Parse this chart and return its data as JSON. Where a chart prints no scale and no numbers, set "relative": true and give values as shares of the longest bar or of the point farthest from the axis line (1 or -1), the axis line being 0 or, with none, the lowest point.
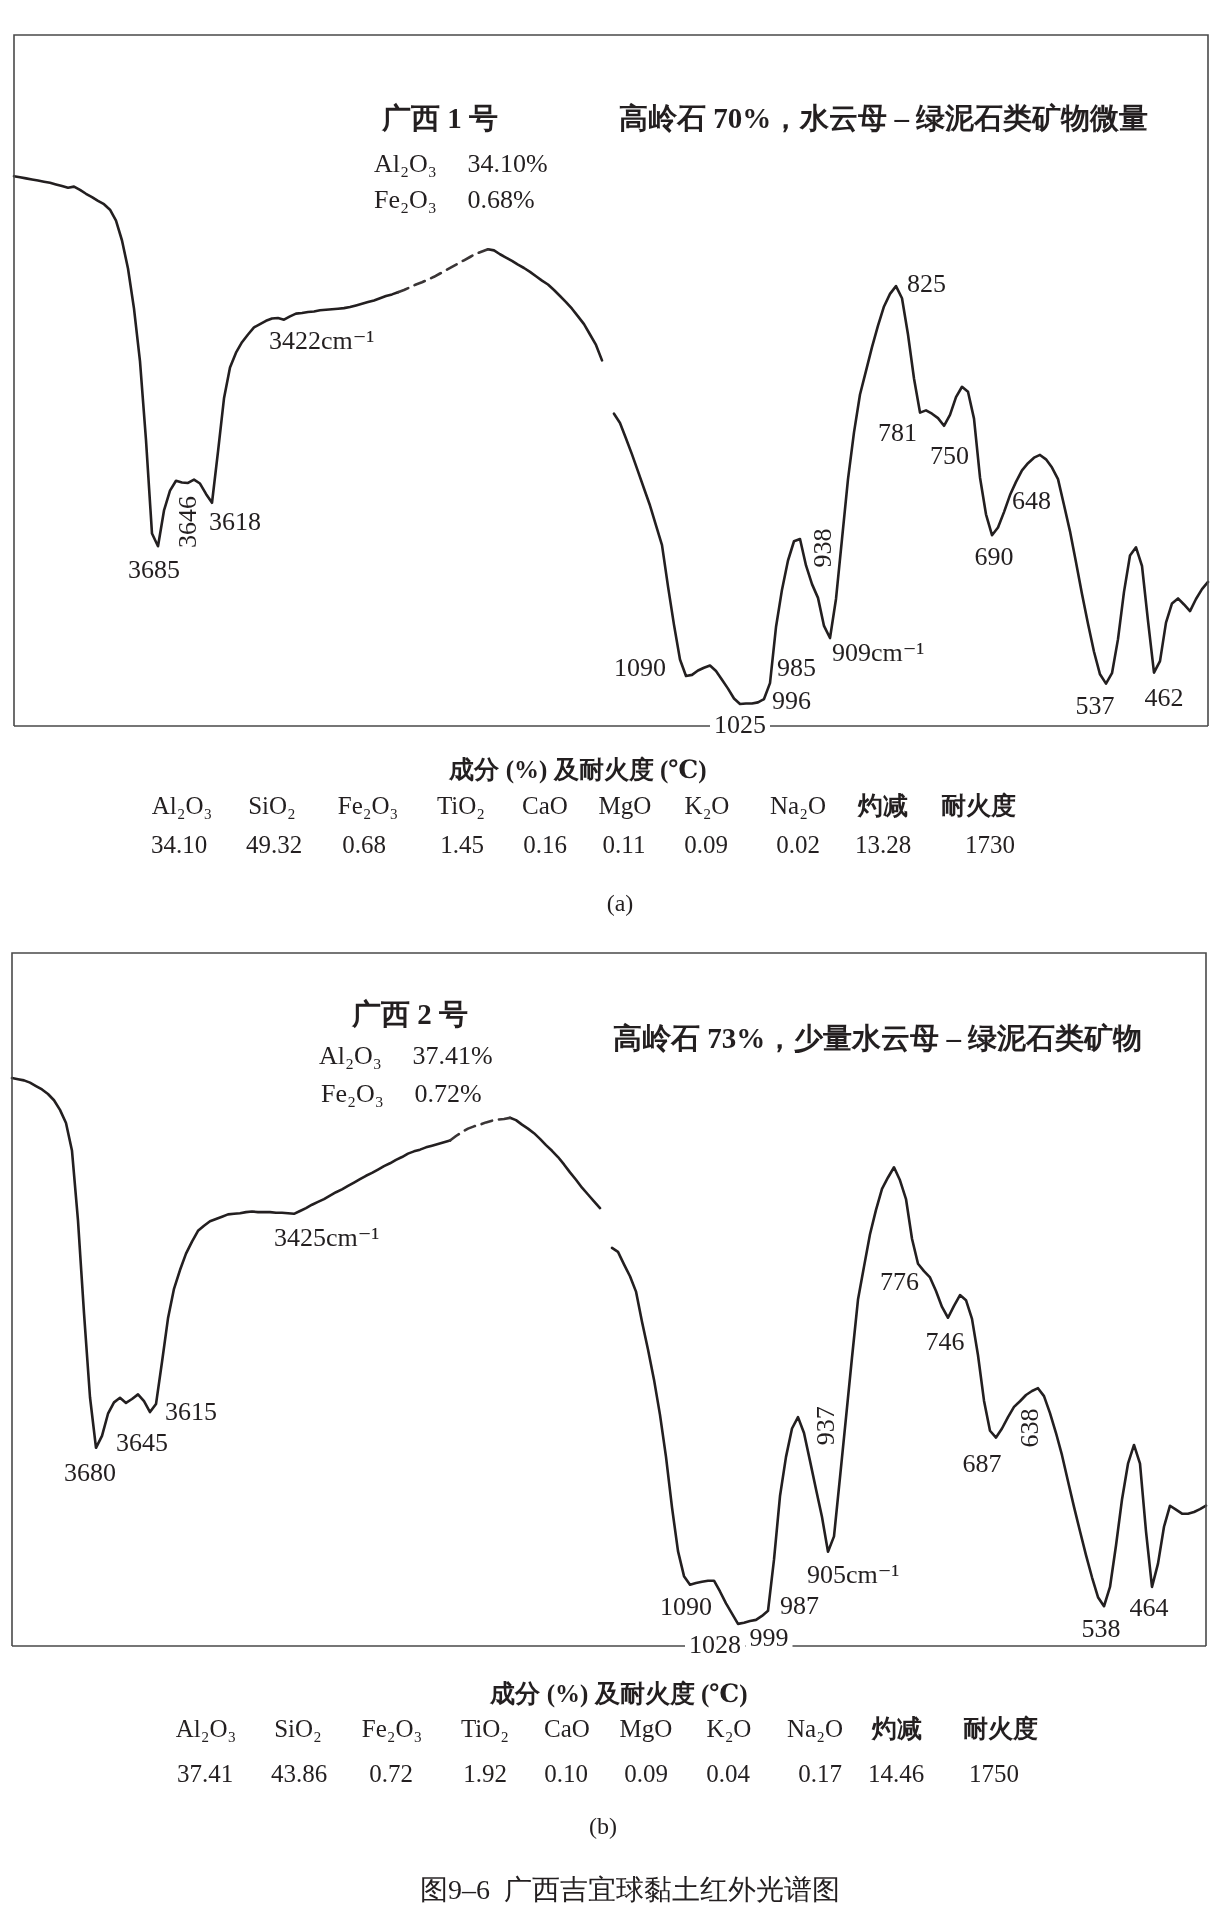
{
  "chart_data": [
    {
      "type": "line",
      "relative": true,
      "title": "广西 1 号",
      "subtitle": "高岭石 70%，水云母 – 绿泥石类矿物微量",
      "categories": [
        null,
        null,
        null,
        null,
        null,
        null,
        null,
        null,
        null,
        null,
        null,
        null,
        null,
        null,
        null,
        null,
        null,
        null,
        null,
        null,
        null,
        null,
        null,
        null,
        null,
        null,
        null,
        null,
        null,
        null,
        null,
        null,
        null,
        null,
        null,
        null,
        null,
        null,
        null,
        null,
        null,
        null,
        null,
        null,
        null,
        null,
        null,
        null,
        null,
        null,
        null,
        null,
        null,
        null,
        null,
        null,
        null,
        null,
        null,
        null,
        null,
        null,
        null,
        null,
        null,
        null,
        null,
        null,
        null,
        null,
        null,
        null,
        null,
        null,
        null,
        null,
        null,
        null,
        null,
        null,
        null,
        null,
        null,
        null,
        null,
        null,
        null,
        null,
        null,
        null,
        null,
        null,
        null,
        null,
        null,
        null,
        null,
        null,
        null,
        null,
        null,
        null,
        null,
        null,
        null,
        null,
        null,
        null,
        null,
        null,
        null,
        null,
        null,
        null,
        null,
        null,
        null,
        null,
        null,
        null,
        null,
        null,
        null,
        null,
        null,
        null,
        null,
        null,
        null,
        null,
        null,
        null,
        null,
        null,
        null,
        null,
        null,
        null,
        null,
        null,
        null,
        null,
        null,
        null,
        null,
        null,
        null,
        null,
        null,
        null,
        null,
        null,
        null,
        null,
        null,
        null,
        null,
        null,
        null,
        null,
        null,
        null,
        null,
        null,
        null,
        null,
        null,
        null,
        null,
        null,
        null,
        null,
        null,
        null,
        null,
        null,
        null,
        null,
        null,
        null,
        null,
        null,
        null,
        null,
        null,
        null,
        null,
        null,
        null,
        null,
        null,
        null,
        null,
        null,
        null,
        null,
        null,
        null,
        null,
        null
      ],
      "series": [
        {
          "color": "#231f20",
          "values": [
            1.0,
            0.998,
            0.996,
            0.994,
            0.992,
            0.99,
            0.988,
            0.985,
            0.982,
            0.979,
            0.981,
            0.975,
            0.968,
            0.962,
            0.955,
            0.949,
            0.939,
            0.919,
            0.883,
            0.832,
            0.759,
            0.663,
            0.52,
            0.35,
            0.327,
            0.392,
            0.428,
            0.446,
            0.443,
            0.442,
            0.448,
            0.441,
            0.422,
            0.406,
            0.499,
            0.596,
            0.652,
            0.679,
            0.698,
            0.712,
            0.725,
            0.731,
            0.737,
            0.741,
            0.742,
            0.739,
            0.745,
            0.75,
            0.751,
            0.753,
            0.754,
            0.756,
            0.757,
            0.758,
            0.759,
            0.76,
            0.762,
            0.765,
            0.768,
            0.771,
            0.774,
            0.778,
            0.782,
            0.785,
            0.789,
            null,
            null,
            null,
            null,
            null,
            null,
            null,
            null,
            null,
            null,
            null,
            null,
            null,
            null,
            0.867,
            0.865,
            0.858,
            0.852,
            0.846,
            0.839,
            0.833,
            0.826,
            0.818,
            0.81,
            0.803,
            0.793,
            0.782,
            0.771,
            0.759,
            0.745,
            0.731,
            0.712,
            0.693,
            0.665,
            null,
            0.568,
            0.551,
            0.523,
            0.494,
            0.463,
            0.432,
            0.401,
            0.365,
            0.329,
            0.254,
            0.184,
            0.121,
            0.091,
            0.093,
            0.101,
            0.106,
            0.11,
            0.1,
            0.084,
            0.068,
            0.05,
            0.04,
            0.041,
            0.041,
            0.043,
            0.049,
            0.078,
            0.18,
            0.248,
            0.301,
            0.336,
            0.34,
            0.292,
            0.258,
            0.233,
            0.182,
            0.16,
            0.231,
            0.34,
            0.449,
            0.534,
            0.603,
            0.646,
            0.689,
            0.728,
            0.763,
            0.786,
            0.8,
            0.778,
            0.712,
            0.632,
            0.57,
            0.574,
            0.568,
            0.56,
            0.546,
            0.566,
            0.598,
            0.617,
            0.608,
            0.559,
            0.452,
            0.385,
            0.347,
            0.361,
            0.389,
            0.42,
            0.444,
            0.465,
            0.478,
            0.488,
            0.493,
            0.485,
            0.47,
            0.449,
            0.402,
            0.354,
            0.298,
            0.24,
            0.186,
            0.135,
            0.094,
            0.077,
            0.096,
            0.158,
            0.244,
            0.31,
            0.325,
            0.291,
            0.191,
            0.097,
            0.118,
            0.188,
            0.223,
            0.232,
            0.221,
            0.209,
            0.231,
            0.249,
            0.262
          ]
        },
        {
          "color": "#3a3536",
          "line_style": "dashed",
          "values": [
            null,
            null,
            null,
            null,
            null,
            null,
            null,
            null,
            null,
            null,
            null,
            null,
            null,
            null,
            null,
            null,
            null,
            null,
            null,
            null,
            null,
            null,
            null,
            null,
            null,
            null,
            null,
            null,
            null,
            null,
            null,
            null,
            null,
            null,
            null,
            null,
            null,
            null,
            null,
            null,
            null,
            null,
            null,
            null,
            null,
            null,
            null,
            null,
            null,
            null,
            null,
            null,
            null,
            null,
            null,
            null,
            null,
            null,
            null,
            null,
            null,
            null,
            null,
            null,
            0.789,
            0.793,
            0.798,
            0.803,
            0.807,
            0.812,
            0.817,
            0.823,
            0.829,
            0.835,
            0.841,
            0.847,
            0.853,
            0.859,
            0.863,
            0.867,
            null,
            null,
            null,
            null,
            null,
            null,
            null,
            null,
            null,
            null,
            null,
            null,
            null,
            null,
            null,
            null,
            null,
            null,
            null,
            null,
            null,
            null,
            null,
            null,
            null,
            null,
            null,
            null,
            null,
            null,
            null,
            null,
            null,
            null,
            null,
            null,
            null,
            null,
            null,
            null,
            null,
            null,
            null,
            null,
            null,
            null,
            null,
            null,
            null,
            null,
            null,
            null,
            null,
            null,
            null,
            null,
            null,
            null,
            null,
            null,
            null,
            null,
            null,
            null,
            null,
            null,
            null,
            null,
            null,
            null,
            null,
            null,
            null,
            null,
            null,
            null,
            null,
            null,
            null,
            null,
            null,
            null,
            null,
            null,
            null,
            null,
            null,
            null,
            null,
            null,
            null,
            null,
            null,
            null,
            null,
            null,
            null,
            null,
            null,
            null,
            null,
            null,
            null,
            null,
            null,
            null,
            null,
            null,
            null,
            null,
            null,
            null,
            null,
            null,
            null,
            null,
            null,
            null,
            null,
            null
          ]
        }
      ],
      "annotations": [
        "3685",
        "3646",
        "3618",
        "3422cm⁻¹",
        "1090",
        "1025",
        "996",
        "985",
        "938",
        "909cm⁻¹",
        "825",
        "781",
        "750",
        "690",
        "648",
        "537",
        "462",
        "Al₂O₃ 34.10%",
        "Fe₂O₃ 0.68%",
        "成分 (%) 及耐火度 (℃)",
        "Al₂O₃",
        "SiO₂",
        "Fe₂O₃",
        "TiO₂",
        "CaO",
        "MgO",
        "K₂O",
        "Na₂O",
        "灼减",
        "耐火度",
        "34.10",
        "49.32",
        "0.68",
        "1.45",
        "0.16",
        "0.11",
        "0.09",
        "0.02",
        "13.28",
        "1730",
        "(a)"
      ]
    },
    {
      "type": "line",
      "relative": true,
      "title": "广西 2 号",
      "subtitle": "高岭石 73%，少量水云母 – 绿泥石类矿物",
      "categories": [
        null,
        null,
        null,
        null,
        null,
        null,
        null,
        null,
        null,
        null,
        null,
        null,
        null,
        null,
        null,
        null,
        null,
        null,
        null,
        null,
        null,
        null,
        null,
        null,
        null,
        null,
        null,
        null,
        null,
        null,
        null,
        null,
        null,
        null,
        null,
        null,
        null,
        null,
        null,
        null,
        null,
        null,
        null,
        null,
        null,
        null,
        null,
        null,
        null,
        null,
        null,
        null,
        null,
        null,
        null,
        null,
        null,
        null,
        null,
        null,
        null,
        null,
        null,
        null,
        null,
        null,
        null,
        null,
        null,
        null,
        null,
        null,
        null,
        null,
        null,
        null,
        null,
        null,
        null,
        null,
        null,
        null,
        null,
        null,
        null,
        null,
        null,
        null,
        null,
        null,
        null,
        null,
        null,
        null,
        null,
        null,
        null,
        null,
        null,
        null,
        null,
        null,
        null,
        null,
        null,
        null,
        null,
        null,
        null,
        null,
        null,
        null,
        null,
        null,
        null,
        null,
        null,
        null,
        null,
        null,
        null,
        null,
        null,
        null,
        null,
        null,
        null,
        null,
        null,
        null,
        null,
        null,
        null,
        null,
        null,
        null,
        null,
        null,
        null,
        null,
        null,
        null,
        null,
        null,
        null,
        null,
        null,
        null,
        null,
        null,
        null,
        null,
        null,
        null,
        null,
        null,
        null,
        null,
        null,
        null,
        null,
        null,
        null,
        null,
        null,
        null,
        null,
        null,
        null,
        null,
        null,
        null,
        null,
        null,
        null,
        null,
        null,
        null,
        null,
        null,
        null,
        null,
        null,
        null,
        null,
        null,
        null,
        null,
        null,
        null,
        null,
        null,
        null,
        null,
        null,
        null,
        null,
        null,
        null,
        null
      ],
      "series": [
        {
          "color": "#231f20",
          "values": [
            1.0,
            0.998,
            0.996,
            0.992,
            0.986,
            0.98,
            0.972,
            0.961,
            0.944,
            0.921,
            0.872,
            0.749,
            0.586,
            0.438,
            0.349,
            0.37,
            0.409,
            0.429,
            0.437,
            0.428,
            0.435,
            0.443,
            0.431,
            0.412,
            0.426,
            0.5,
            0.577,
            0.629,
            0.662,
            0.691,
            0.712,
            0.731,
            0.74,
            0.748,
            0.752,
            0.756,
            0.76,
            0.761,
            0.762,
            0.764,
            0.765,
            0.764,
            0.764,
            0.764,
            0.763,
            0.763,
            0.762,
            0.761,
            0.766,
            0.771,
            0.777,
            0.782,
            0.787,
            0.793,
            0.799,
            0.804,
            0.81,
            0.816,
            0.822,
            0.828,
            0.833,
            0.839,
            0.845,
            0.85,
            0.856,
            0.861,
            0.867,
            0.871,
            0.874,
            0.878,
            0.881,
            0.884,
            0.887,
            0.89,
            null,
            null,
            null,
            null,
            null,
            null,
            null,
            null,
            null,
            0.93,
            0.926,
            0.918,
            0.911,
            0.903,
            0.893,
            0.882,
            0.872,
            0.861,
            0.848,
            0.834,
            0.821,
            0.807,
            0.795,
            0.783,
            0.771,
            null,
            0.701,
            0.694,
            0.672,
            0.651,
            0.624,
            0.571,
            0.522,
            0.469,
            0.407,
            0.333,
            0.244,
            0.167,
            0.123,
            0.108,
            0.111,
            0.113,
            0.115,
            0.115,
            0.096,
            0.075,
            0.057,
            0.039,
            0.041,
            0.044,
            0.046,
            0.053,
            0.062,
            0.152,
            0.264,
            0.333,
            0.383,
            0.403,
            0.375,
            0.326,
            0.276,
            0.227,
            0.166,
            0.193,
            0.297,
            0.402,
            0.508,
            0.61,
            0.668,
            0.725,
            0.768,
            0.805,
            0.825,
            0.843,
            0.82,
            0.787,
            0.717,
            0.673,
            0.66,
            0.649,
            0.625,
            0.597,
            0.578,
            0.599,
            0.618,
            0.609,
            0.576,
            0.512,
            0.432,
            0.379,
            0.367,
            0.383,
            0.403,
            0.421,
            0.431,
            0.442,
            0.449,
            0.454,
            0.44,
            0.41,
            0.375,
            0.336,
            0.29,
            0.245,
            0.202,
            0.16,
            0.121,
            0.086,
            0.07,
            0.104,
            0.177,
            0.258,
            0.321,
            0.354,
            0.321,
            0.202,
            0.104,
            0.145,
            0.21,
            0.247,
            0.24,
            0.233,
            0.233,
            0.236,
            0.241,
            0.247
          ]
        },
        {
          "color": "#3a3536",
          "line_style": "dashed",
          "values": [
            null,
            null,
            null,
            null,
            null,
            null,
            null,
            null,
            null,
            null,
            null,
            null,
            null,
            null,
            null,
            null,
            null,
            null,
            null,
            null,
            null,
            null,
            null,
            null,
            null,
            null,
            null,
            null,
            null,
            null,
            null,
            null,
            null,
            null,
            null,
            null,
            null,
            null,
            null,
            null,
            null,
            null,
            null,
            null,
            null,
            null,
            null,
            null,
            null,
            null,
            null,
            null,
            null,
            null,
            null,
            null,
            null,
            null,
            null,
            null,
            null,
            null,
            null,
            null,
            null,
            null,
            null,
            null,
            null,
            null,
            null,
            null,
            null,
            0.89,
            0.898,
            0.905,
            0.911,
            0.915,
            0.918,
            0.922,
            0.925,
            0.927,
            0.928,
            0.93,
            null,
            null,
            null,
            null,
            null,
            null,
            null,
            null,
            null,
            null,
            null,
            null,
            null,
            null,
            null,
            null,
            null,
            null,
            null,
            null,
            null,
            null,
            null,
            null,
            null,
            null,
            null,
            null,
            null,
            null,
            null,
            null,
            null,
            null,
            null,
            null,
            null,
            null,
            null,
            null,
            null,
            null,
            null,
            null,
            null,
            null,
            null,
            null,
            null,
            null,
            null,
            null,
            null,
            null,
            null,
            null,
            null,
            null,
            null,
            null,
            null,
            null,
            null,
            null,
            null,
            null,
            null,
            null,
            null,
            null,
            null,
            null,
            null,
            null,
            null,
            null,
            null,
            null,
            null,
            null,
            null,
            null,
            null,
            null,
            null,
            null,
            null,
            null,
            null,
            null,
            null,
            null,
            null,
            null,
            null,
            null,
            null,
            null,
            null,
            null,
            null,
            null,
            null,
            null,
            null,
            null,
            null,
            null,
            null,
            null,
            null,
            null,
            null,
            null,
            null,
            null
          ]
        }
      ],
      "annotations": [
        "3680",
        "3645",
        "3615",
        "3425cm⁻¹",
        "1090",
        "1028",
        "999",
        "987",
        "937",
        "905cm⁻¹",
        "776",
        "746",
        "687",
        "638",
        "538",
        "464",
        "Al₂O₃ 37.41%",
        "Fe₂O₃ 0.72%",
        "成分 (%) 及耐火度 (℃)",
        "Al₂O₃",
        "SiO₂",
        "Fe₂O₃",
        "TiO₂",
        "CaO",
        "MgO",
        "K₂O",
        "Na₂O",
        "灼减",
        "耐火度",
        "37.41",
        "43.86",
        "0.72",
        "1.92",
        "0.10",
        "0.09",
        "0.04",
        "0.17",
        "14.46",
        "1750",
        "(b)",
        "图9–6  广西吉宜球黏土红外光谱图"
      ]
    }
  ]
}
